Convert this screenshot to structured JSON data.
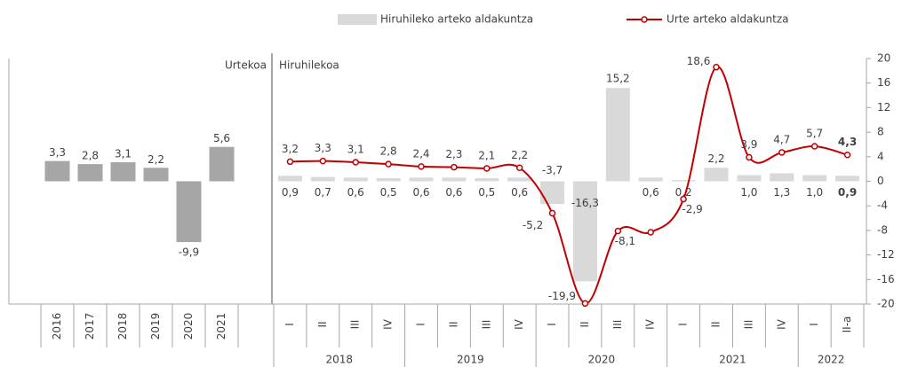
{
  "chart_data": [
    {
      "type": "bar",
      "title": "Urtekoa",
      "categories": [
        "2016",
        "2017",
        "2018",
        "2019",
        "2020",
        "2021"
      ],
      "values": [
        3.3,
        2.8,
        3.1,
        2.2,
        -9.9,
        5.6
      ],
      "value_labels": [
        "3,3",
        "2,8",
        "3,1",
        "2,2",
        "-9,9",
        "5,6"
      ],
      "color": "#a6a6a6",
      "ylim": [
        -20,
        20
      ]
    },
    {
      "type": "combo",
      "title": "Hiruhilekoa",
      "groups": [
        {
          "name": "2018",
          "categories": [
            "I",
            "II",
            "III",
            "IV"
          ]
        },
        {
          "name": "2019",
          "categories": [
            "I",
            "II",
            "III",
            "IV"
          ]
        },
        {
          "name": "2020",
          "categories": [
            "I",
            "II",
            "III",
            "IV"
          ]
        },
        {
          "name": "2021",
          "categories": [
            "I",
            "II",
            "III",
            "IV"
          ]
        },
        {
          "name": "2022",
          "categories": [
            "I",
            "II-a"
          ]
        }
      ],
      "series": [
        {
          "name": "Hiruhileko arteko aldakuntza",
          "type": "bar",
          "color": "#d9d9d9",
          "values": [
            0.9,
            0.7,
            0.6,
            0.5,
            0.6,
            0.6,
            0.5,
            0.6,
            -3.7,
            -16.3,
            15.2,
            0.6,
            0.2,
            2.2,
            1.0,
            1.3,
            1.0,
            0.9
          ],
          "value_labels": [
            "0,9",
            "0,7",
            "0,6",
            "0,5",
            "0,6",
            "0,6",
            "0,5",
            "0,6",
            "-3,7",
            "-16,3",
            "15,2",
            "0,6",
            "0,2",
            "2,2",
            "1,0",
            "1,3",
            "1,0",
            "0,9"
          ]
        },
        {
          "name": "Urte arteko aldakuntza",
          "type": "line",
          "color": "#c00000",
          "values": [
            3.2,
            3.3,
            3.1,
            2.8,
            2.4,
            2.3,
            2.1,
            2.2,
            -5.2,
            -19.9,
            -8.1,
            -8.3,
            -2.9,
            18.6,
            3.9,
            4.7,
            5.7,
            4.3
          ],
          "value_labels": [
            "3,2",
            "3,3",
            "3,1",
            "2,8",
            "2,4",
            "2,3",
            "2,1",
            "2,2",
            "-5,2",
            "-19,9",
            "-8,1",
            null,
            "-2,9",
            "18,6",
            "3,9",
            "4,7",
            "5,7",
            "4,3"
          ]
        }
      ],
      "ylim": [
        -20,
        20
      ],
      "yticks": [
        20,
        16,
        12,
        8,
        4,
        0,
        -4,
        -8,
        -12,
        -16,
        -20
      ]
    }
  ]
}
